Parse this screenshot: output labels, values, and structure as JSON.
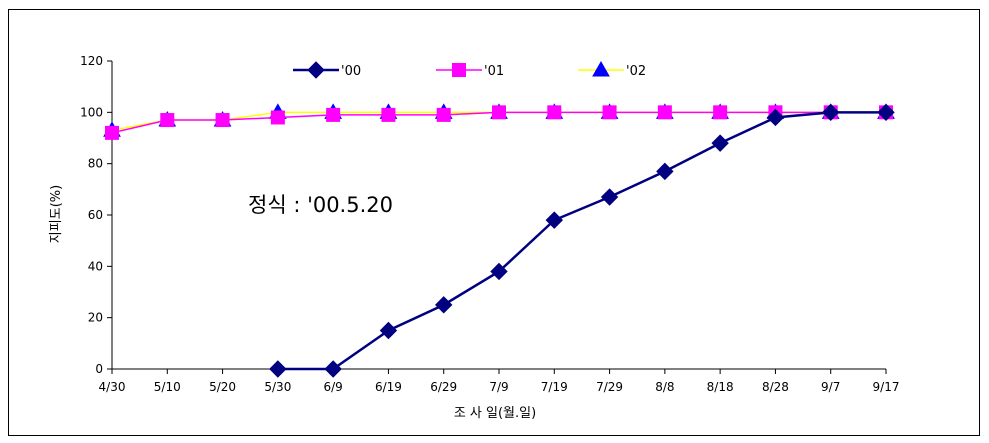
{
  "chart_data": {
    "type": "line",
    "title": "",
    "xlabel": "조 사 일(월.일)",
    "ylabel": "지피도(%)",
    "ylim": [
      0,
      120
    ],
    "yticks": [
      0,
      20,
      40,
      60,
      80,
      100,
      120
    ],
    "categories": [
      "4/30",
      "5/10",
      "5/20",
      "5/30",
      "6/9",
      "6/19",
      "6/29",
      "7/9",
      "7/19",
      "7/29",
      "8/8",
      "8/18",
      "8/28",
      "9/7",
      "9/17"
    ],
    "grid": false,
    "legend_position": "top",
    "annotation": "정식 : '00.5.20",
    "series": [
      {
        "name": "'00",
        "color": "#000080",
        "marker": "diamond",
        "values": [
          null,
          null,
          null,
          0,
          0,
          15,
          25,
          38,
          58,
          67,
          77,
          88,
          98,
          100,
          100
        ]
      },
      {
        "name": "'01",
        "color": "#ff00ff",
        "marker": "square",
        "values": [
          92,
          97,
          97,
          98,
          99,
          99,
          99,
          100,
          100,
          100,
          100,
          100,
          100,
          100,
          100
        ]
      },
      {
        "name": "'02",
        "color": "#ffff00",
        "marker_color": "#0000ff",
        "marker": "triangle",
        "values": [
          93,
          97,
          97,
          100,
          100,
          100,
          100,
          100,
          100,
          100,
          100,
          100,
          100,
          100,
          100
        ]
      }
    ]
  }
}
